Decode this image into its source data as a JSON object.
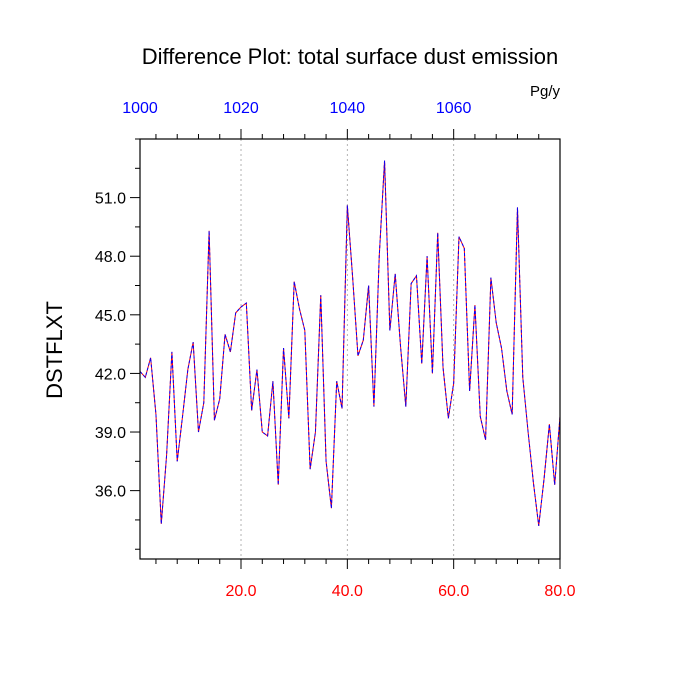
{
  "chart_data": {
    "type": "line",
    "title": "Difference Plot: total surface dust emission",
    "units": "Pg/y",
    "ylabel": "DSTFLXT",
    "xlim": [
      1,
      80
    ],
    "ylim": [
      32.5,
      54.0
    ],
    "yticks": [
      36.0,
      39.0,
      42.0,
      45.0,
      48.0,
      51.0
    ],
    "ytick_labels": [
      "36.0",
      "39.0",
      "42.0",
      "45.0",
      "48.0",
      "51.0"
    ],
    "bottom_axis": {
      "ticks": [
        20,
        40,
        60,
        80
      ],
      "labels": [
        "20.0",
        "40.0",
        "60.0",
        "80.0"
      ],
      "color": "#ff0000"
    },
    "top_axis": {
      "ticks": [
        20,
        40,
        60
      ],
      "labels": [
        "1000",
        "1020",
        "1040",
        "1060"
      ],
      "label_positions": [
        0,
        20,
        40,
        60
      ],
      "color": "#0000ff"
    },
    "grid": "vertical-dotted",
    "series": [
      {
        "color_primary": "#ff0000",
        "color_secondary": "#0000ff",
        "x": [
          1,
          2,
          3,
          4,
          5,
          6,
          7,
          8,
          9,
          10,
          11,
          12,
          13,
          14,
          15,
          16,
          17,
          18,
          19,
          20,
          21,
          22,
          23,
          24,
          25,
          26,
          27,
          28,
          29,
          30,
          31,
          32,
          33,
          34,
          35,
          36,
          37,
          38,
          39,
          40,
          41,
          42,
          43,
          44,
          45,
          46,
          47,
          48,
          49,
          50,
          51,
          52,
          53,
          54,
          55,
          56,
          57,
          58,
          59,
          60,
          61,
          62,
          63,
          64,
          65,
          66,
          67,
          68,
          69,
          70,
          71,
          72,
          73,
          74,
          75,
          76,
          77,
          78,
          79,
          80
        ],
        "values": [
          42.1,
          41.8,
          42.8,
          39.9,
          34.3,
          37.8,
          43.1,
          37.5,
          39.8,
          42.2,
          43.6,
          39.0,
          40.5,
          49.3,
          39.6,
          40.7,
          44.0,
          43.1,
          45.1,
          45.4,
          45.6,
          40.1,
          42.2,
          39.0,
          38.8,
          41.6,
          36.3,
          43.3,
          39.7,
          46.7,
          45.3,
          44.2,
          37.1,
          39.0,
          46.0,
          37.5,
          35.1,
          41.6,
          40.2,
          50.6,
          46.9,
          42.9,
          43.7,
          46.5,
          40.3,
          48.0,
          52.9,
          44.2,
          47.1,
          43.4,
          40.3,
          46.6,
          47.0,
          42.5,
          48.0,
          42.0,
          49.2,
          42.3,
          39.7,
          41.5,
          49.0,
          48.4,
          41.1,
          45.5,
          39.8,
          38.6,
          46.9,
          44.6,
          43.3,
          41.1,
          39.9,
          50.5,
          41.8,
          39.0,
          36.4,
          34.2,
          36.6,
          39.4,
          36.3,
          39.8
        ]
      }
    ]
  }
}
